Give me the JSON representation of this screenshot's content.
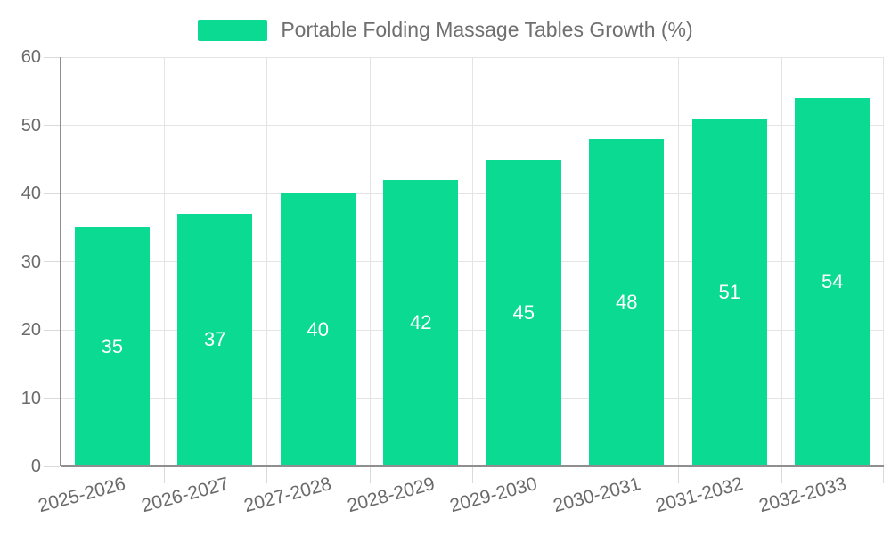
{
  "legend": {
    "label": "Portable Folding Massage Tables Growth (%)"
  },
  "chart_data": {
    "type": "bar",
    "title": "Portable Folding Massage Tables Growth (%)",
    "categories": [
      "2025-2026",
      "2026-2027",
      "2027-2028",
      "2028-2029",
      "2029-2030",
      "2030-2031",
      "2031-2032",
      "2032-2033"
    ],
    "values": [
      35,
      37,
      40,
      42,
      45,
      48,
      51,
      54
    ],
    "xlabel": "",
    "ylabel": "",
    "ylim": [
      0,
      60
    ],
    "yticks": [
      0,
      10,
      20,
      30,
      40,
      50,
      60
    ],
    "grid": true,
    "legend_position": "top",
    "value_labels_inside_bars": true,
    "x_label_rotation_deg": -15
  },
  "colors": {
    "bar": "#0BDB92",
    "grid_line": "#E4E4E4",
    "axis_line": "#8F8F8F",
    "tick_mark": "#DADADA",
    "axis_text": "#6A6A6A",
    "legend_text": "#6F6F6F",
    "value_label": "#FFFFFF",
    "background": "#FFFFFF"
  }
}
